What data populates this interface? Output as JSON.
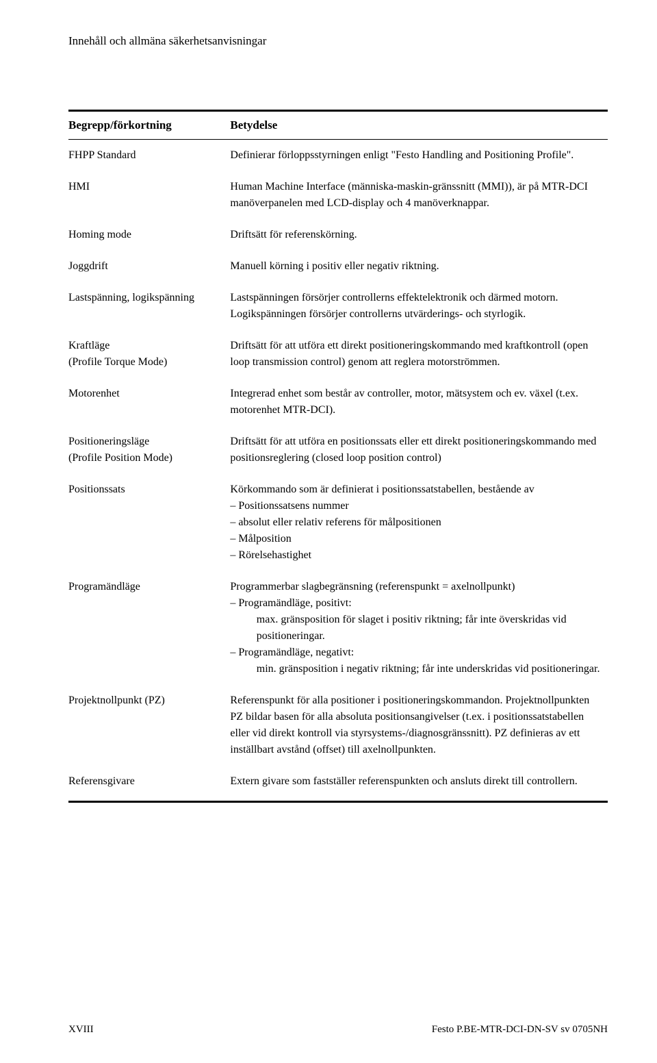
{
  "header": "Innehåll och allmäna säkerhetsanvisningar",
  "table": {
    "col_term": "Begrepp/förkortning",
    "col_def": "Betydelse",
    "rows": [
      {
        "term": "FHPP Standard",
        "def": "Definierar förloppsstyrningen enligt \"Festo Handling and Positioning Profile\"."
      },
      {
        "term": "HMI",
        "def": "Human Machine Interface (människa-maskin-gränssnitt (MMI)), är på MTR-DCI manöverpanelen med LCD-display och 4 manöverknappar."
      },
      {
        "term": "Homing mode",
        "def": "Driftsätt för referenskörning."
      },
      {
        "term": "Joggdrift",
        "def": "Manuell körning i positiv eller negativ riktning."
      },
      {
        "term": "Lastspänning, logikspänning",
        "def": "Lastspänningen försörjer controllerns effektelektronik och därmed motorn. Logikspänningen försörjer controllerns utvärderings- och styrlogik."
      },
      {
        "term": "Kraftläge\n(Profile Torque Mode)",
        "def": "Driftsätt för att utföra ett direkt positioneringskommando med kraftkontroll (open loop transmission control) genom att reglera motorströmmen."
      },
      {
        "term": "Motorenhet",
        "def": "Integrerad enhet som består av controller, motor, mätsystem och ev. växel (t.ex. motorenhet MTR-DCI)."
      },
      {
        "term": "Positioneringsläge\n(Profile Position Mode)",
        "def": "Driftsätt för att utföra en positionssats eller ett direkt positioneringskommando med positionsreglering (closed loop position control)"
      },
      {
        "term": "Positionssats",
        "def_pre": "Körkommando som är definierat i positionssatstabellen, bestående av",
        "bullets": [
          "Positionssatsens nummer",
          "absolut eller relativ referens för målpositionen",
          "Målposition",
          "Rörelsehastighet"
        ]
      },
      {
        "term": "Programändläge",
        "def_pre": "Programmerbar slagbegränsning (referenspunkt = axelnollpunkt)",
        "complex": [
          {
            "b": "Programändläge, positivt:",
            "sub": "max. gränsposition för slaget i positiv riktning; får inte överskridas vid positioneringar."
          },
          {
            "b": "Programändläge, negativt:",
            "sub": "min. gränsposition i negativ riktning; får inte underskridas vid positioneringar."
          }
        ]
      },
      {
        "term": "Projektnollpunkt (PZ)",
        "def": "Referenspunkt för alla positioner i positioneringskommandon. Projektnollpunkten PZ bildar basen för alla absoluta positionsangivelser (t.ex. i positionssatstabellen eller vid direkt kontroll via styrsystems-/diagnosgränssnitt). PZ definieras av ett inställbart avstånd (offset) till axelnollpunkten."
      },
      {
        "term": "Referensgivare",
        "def": "Extern givare som fastställer referenspunkten och ansluts direkt till controllern."
      }
    ]
  },
  "footer": {
    "left": "XVIII",
    "right": "Festo  P.BE-MTR-DCI-DN-SV  sv 0705NH"
  }
}
